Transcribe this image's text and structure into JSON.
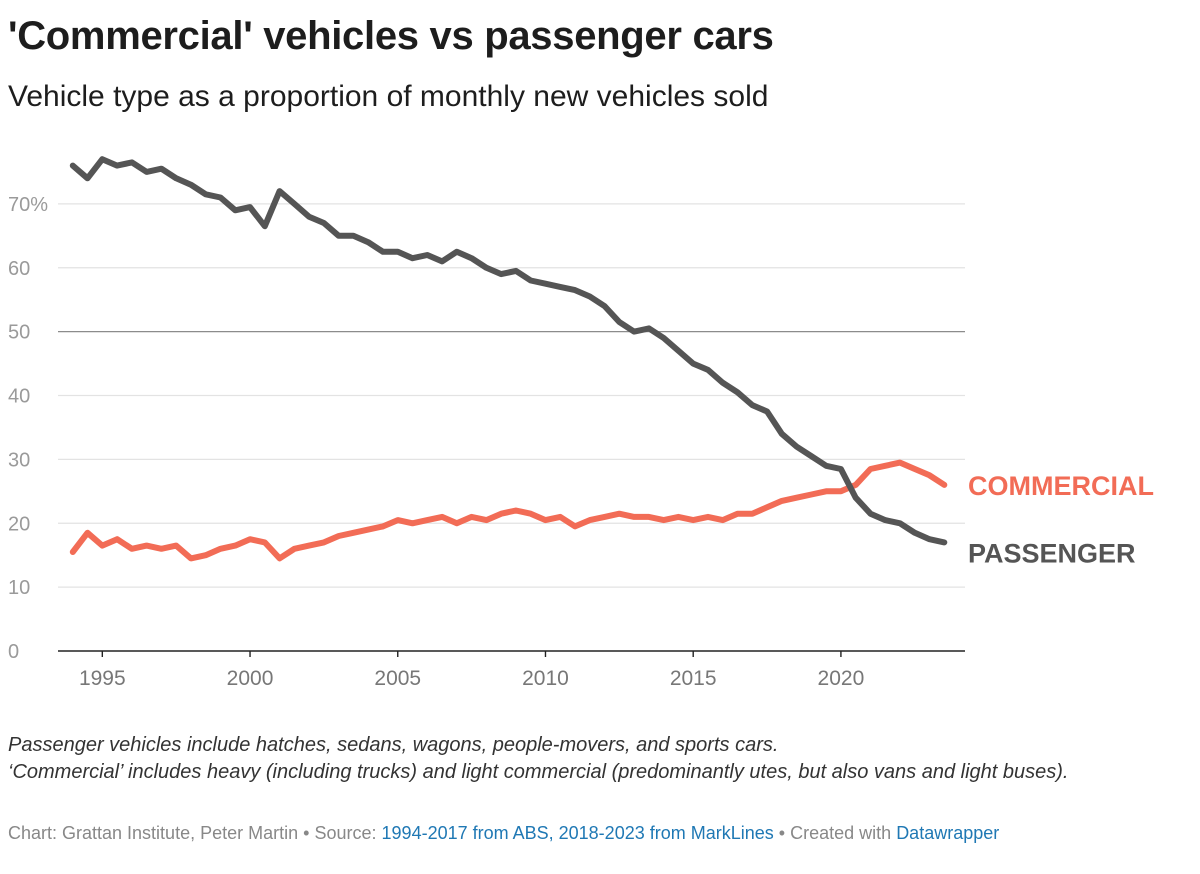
{
  "title": "'Commercial' vehicles vs passenger cars",
  "subtitle": "Vehicle type as a proportion of monthly new vehicles sold",
  "notes": [
    "Passenger vehicles include hatches, sedans, wagons, people-movers, and sports cars.",
    "‘Commercial’ includes heavy (including trucks) and light commercial (predominantly utes, but also vans and light buses)."
  ],
  "footer": {
    "chart_by": "Chart: Grattan Institute, Peter Martin",
    "sep": "•",
    "source_label": "Source:",
    "source_link": "1994-2017 from ABS, 2018-2023 from MarkLines",
    "created_label": "Created with",
    "created_link": "Datawrapper"
  },
  "colors": {
    "commercial": "#f26c56",
    "passenger": "#555555",
    "grid": "#e3e3e3",
    "midline": "#8c8c8c",
    "axis": "#222222",
    "link": "#1f78b4"
  },
  "chart_data": {
    "type": "line",
    "xlabel": "",
    "ylabel": "",
    "x_ticks": [
      1995,
      2000,
      2005,
      2010,
      2015,
      2020
    ],
    "y_ticks": [
      0,
      10,
      20,
      30,
      40,
      50,
      60,
      70
    ],
    "y_tick_labels": [
      "0",
      "10",
      "20",
      "30",
      "40",
      "50",
      "60",
      "70%"
    ],
    "xlim": [
      1993.5,
      2024.2
    ],
    "ylim": [
      0,
      80
    ],
    "grid": true,
    "x": [
      1994.0,
      1994.5,
      1995.0,
      1995.5,
      1996.0,
      1996.5,
      1997.0,
      1997.5,
      1998.0,
      1998.5,
      1999.0,
      1999.5,
      2000.0,
      2000.5,
      2001.0,
      2001.5,
      2002.0,
      2002.5,
      2003.0,
      2003.5,
      2004.0,
      2004.5,
      2005.0,
      2005.5,
      2006.0,
      2006.5,
      2007.0,
      2007.5,
      2008.0,
      2008.5,
      2009.0,
      2009.5,
      2010.0,
      2010.5,
      2011.0,
      2011.5,
      2012.0,
      2012.5,
      2013.0,
      2013.5,
      2014.0,
      2014.5,
      2015.0,
      2015.5,
      2016.0,
      2016.5,
      2017.0,
      2017.5,
      2018.0,
      2018.5,
      2019.0,
      2019.5,
      2020.0,
      2020.5,
      2021.0,
      2021.5,
      2022.0,
      2022.5,
      2023.0,
      2023.5
    ],
    "series": [
      {
        "name": "COMMERCIAL",
        "values": [
          15.5,
          18.5,
          16.5,
          17.5,
          16.0,
          16.5,
          16.0,
          16.5,
          14.5,
          15.0,
          16.0,
          16.5,
          17.5,
          17.0,
          14.5,
          16.0,
          16.5,
          17.0,
          18.0,
          18.5,
          19.0,
          19.5,
          20.5,
          20.0,
          20.5,
          21.0,
          20.0,
          21.0,
          20.5,
          21.5,
          22.0,
          21.5,
          20.5,
          21.0,
          19.5,
          20.5,
          21.0,
          21.5,
          21.0,
          21.0,
          20.5,
          21.0,
          20.5,
          21.0,
          20.5,
          21.5,
          21.5,
          22.5,
          23.5,
          24.0,
          24.5,
          25.0,
          25.0,
          26.0,
          28.5,
          29.0,
          29.5,
          28.5,
          27.5,
          26.0
        ]
      },
      {
        "name": "PASSENGER",
        "values": [
          76.0,
          74.0,
          77.0,
          76.0,
          76.5,
          75.0,
          75.5,
          74.0,
          73.0,
          71.5,
          71.0,
          69.0,
          69.5,
          66.5,
          72.0,
          70.0,
          68.0,
          67.0,
          65.0,
          65.0,
          64.0,
          62.5,
          62.5,
          61.5,
          62.0,
          61.0,
          62.5,
          61.5,
          60.0,
          59.0,
          59.5,
          58.0,
          57.5,
          57.0,
          56.5,
          55.5,
          54.0,
          51.5,
          50.0,
          50.5,
          49.0,
          47.0,
          45.0,
          44.0,
          42.0,
          40.5,
          38.5,
          37.5,
          34.0,
          32.0,
          30.5,
          29.0,
          28.5,
          24.0,
          21.5,
          20.5,
          20.0,
          18.5,
          17.5,
          17.0
        ]
      }
    ]
  }
}
